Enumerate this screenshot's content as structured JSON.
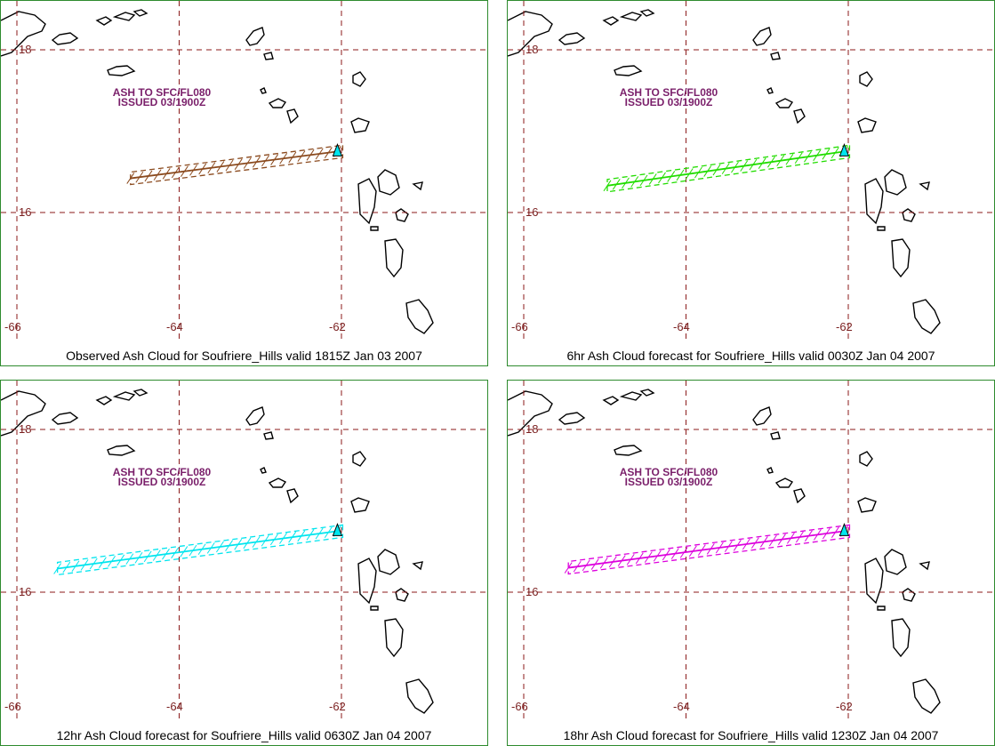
{
  "map": {
    "lat_labels": [
      "18",
      "16"
    ],
    "lon_labels": [
      "-66",
      "-64",
      "-62"
    ],
    "grid_color": "#8b1a1a",
    "coast_color": "#000000",
    "advisory_line1": "ASH TO SFC/FL080",
    "advisory_line2": "ISSUED 03/1900Z",
    "volcano": "Soufriere_Hills"
  },
  "panels": [
    {
      "caption": "Observed Ash Cloud for Soufriere_Hills valid 1815Z Jan 03 2007",
      "cloud_color": "#8b4a1e",
      "cloud_from": {
        "lon": -62.05,
        "lat": 16.75
      },
      "cloud_to": {
        "lon": -64.6,
        "lat": 16.42
      }
    },
    {
      "caption": "6hr Ash Cloud forecast for Soufriere_Hills valid 0030Z Jan 04 2007",
      "cloud_color": "#22dd00",
      "cloud_from": {
        "lon": -62.05,
        "lat": 16.75
      },
      "cloud_to": {
        "lon": -64.97,
        "lat": 16.33
      }
    },
    {
      "caption": "12hr Ash Cloud forecast for Soufriere_Hills valid 0630Z Jan 04 2007",
      "cloud_color": "#00e5ee",
      "cloud_from": {
        "lon": -62.05,
        "lat": 16.75
      },
      "cloud_to": {
        "lon": -65.5,
        "lat": 16.29
      }
    },
    {
      "caption": "18hr Ash Cloud forecast for Soufriere_Hills valid 1230Z Jan 04 2007",
      "cloud_color": "#dd00dd",
      "cloud_from": {
        "lon": -62.05,
        "lat": 16.75
      },
      "cloud_to": {
        "lon": -65.45,
        "lat": 16.3
      }
    }
  ]
}
